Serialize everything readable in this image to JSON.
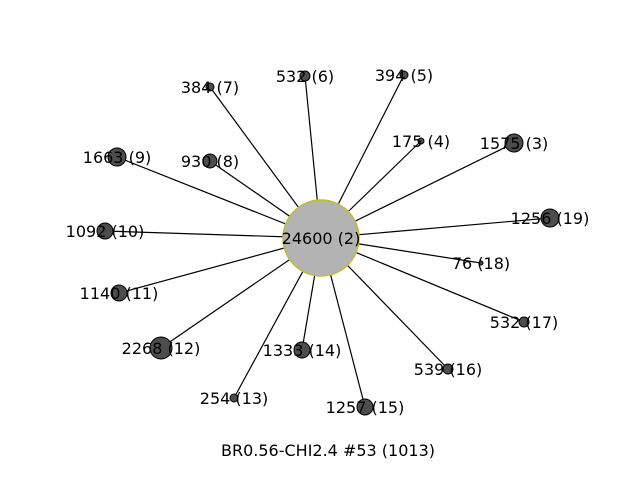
{
  "caption": "BR0.56-CHI2.4 #53 (1013)",
  "center": {
    "label": "24600 (2)",
    "fill": "#b3b3b3",
    "stroke": "#bfbf2a"
  },
  "colors": {
    "node_fill": "#4d4d4d",
    "node_stroke": "#000000",
    "edge": "#000000"
  },
  "nodes": [
    {
      "label": "1575 (3)"
    },
    {
      "label": "175 (4)"
    },
    {
      "label": "394 (5)"
    },
    {
      "label": "532 (6)"
    },
    {
      "label": "384 (7)"
    },
    {
      "label": "930 (8)"
    },
    {
      "label": "1663 (9)"
    },
    {
      "label": "1092 (10)"
    },
    {
      "label": "1140 (11)"
    },
    {
      "label": "2268 (12)"
    },
    {
      "label": "254 (13)"
    },
    {
      "label": "1333 (14)"
    },
    {
      "label": "1257 (15)"
    },
    {
      "label": "539 (16)"
    },
    {
      "label": "532 (17)"
    },
    {
      "label": "76 (18)"
    },
    {
      "label": "1256 (19)"
    }
  ]
}
